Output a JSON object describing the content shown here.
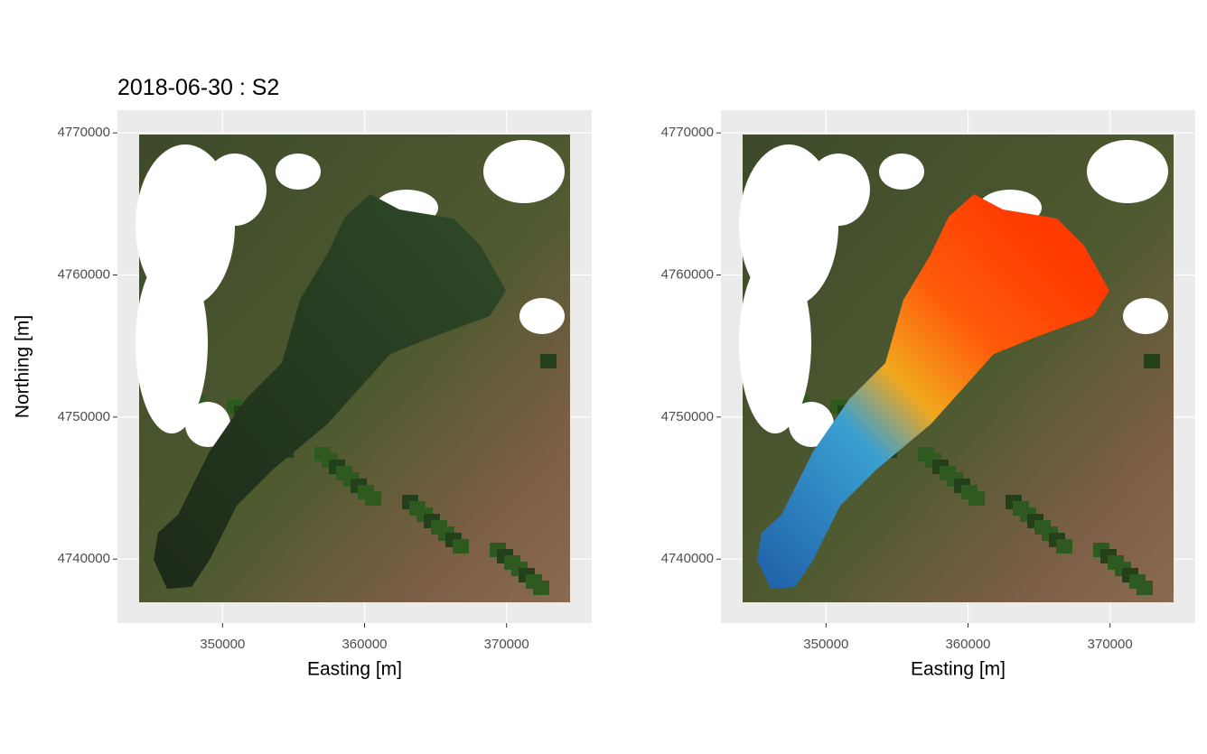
{
  "chart_data": [
    {
      "type": "map",
      "title": "2018-06-30 : S2",
      "x_label": "Easting [m]",
      "y_label": "Northing [m]",
      "xlim": [
        342600,
        376000
      ],
      "ylim": [
        4735500,
        4771600
      ],
      "xticks": [
        350000,
        360000,
        370000
      ],
      "yticks": [
        4740000,
        4750000,
        4760000,
        4770000
      ],
      "grid": true
    },
    {
      "type": "map",
      "x_label": "Easting [m]",
      "xlim": [
        342600,
        376000
      ],
      "ylim": [
        4735500,
        4771600
      ],
      "xticks": [
        350000,
        360000,
        370000
      ],
      "yticks": [
        4740000,
        4750000,
        4760000,
        4770000
      ],
      "grid": true,
      "overlay": true
    }
  ]
}
